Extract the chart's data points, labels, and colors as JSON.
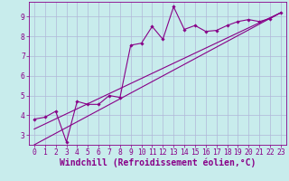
{
  "xlabel": "Windchill (Refroidissement éolien,°C)",
  "bg_color": "#c8ecec",
  "grid_color": "#b0b8d8",
  "line_color": "#880088",
  "x_data": [
    0,
    1,
    2,
    3,
    4,
    5,
    6,
    7,
    8,
    9,
    10,
    11,
    12,
    13,
    14,
    15,
    16,
    17,
    18,
    19,
    20,
    21,
    22,
    23
  ],
  "y_data": [
    3.8,
    3.9,
    4.2,
    2.65,
    4.7,
    4.55,
    4.55,
    5.0,
    4.9,
    7.55,
    7.65,
    8.5,
    7.85,
    9.5,
    8.35,
    8.55,
    8.25,
    8.3,
    8.55,
    8.75,
    8.85,
    8.75,
    8.9,
    9.2
  ],
  "trend1_x": [
    0,
    23
  ],
  "trend1_y": [
    3.3,
    9.2
  ],
  "trend2_x": [
    0,
    23
  ],
  "trend2_y": [
    2.5,
    9.2
  ],
  "xlim": [
    -0.5,
    23.5
  ],
  "ylim": [
    2.5,
    9.75
  ],
  "xticks": [
    0,
    1,
    2,
    3,
    4,
    5,
    6,
    7,
    8,
    9,
    10,
    11,
    12,
    13,
    14,
    15,
    16,
    17,
    18,
    19,
    20,
    21,
    22,
    23
  ],
  "yticks": [
    3,
    4,
    5,
    6,
    7,
    8,
    9
  ],
  "font_color": "#880088",
  "tick_fontsize": 5.8,
  "xlabel_fontsize": 7.0
}
